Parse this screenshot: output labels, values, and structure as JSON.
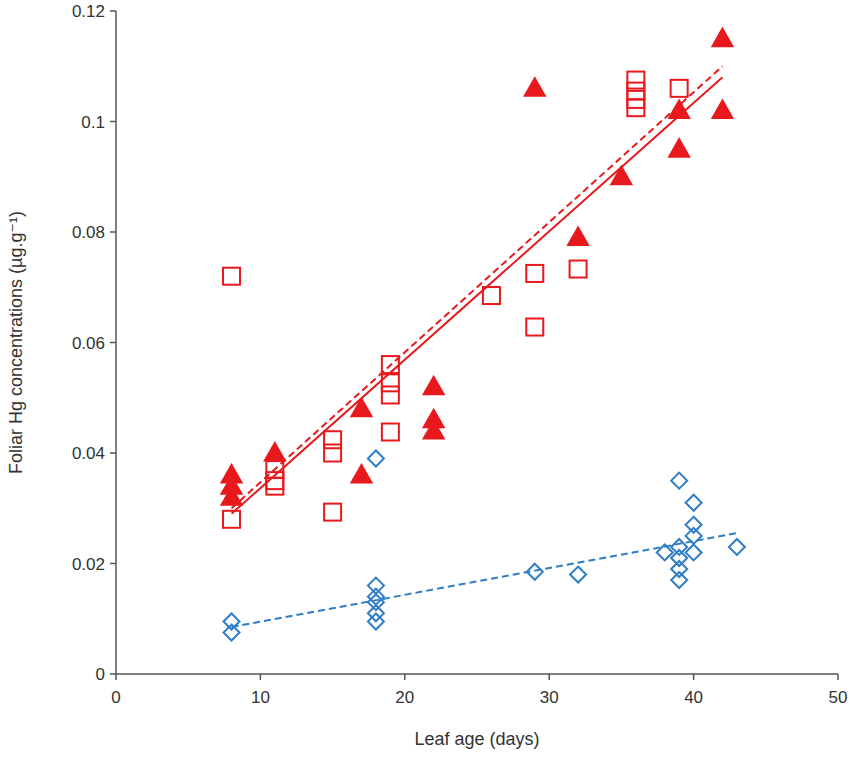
{
  "chart_data": {
    "type": "scatter",
    "x_label": "Leaf age (days)",
    "y_label": "Foliar Hg concentrations (µg.g⁻¹)",
    "xlim": [
      0,
      50
    ],
    "ylim": [
      0,
      0.12
    ],
    "xticks": [
      0,
      10,
      20,
      30,
      40,
      50
    ],
    "yticks": [
      0,
      0.02,
      0.04,
      0.06,
      0.08,
      0.1,
      0.12
    ],
    "grid": false,
    "series": [
      {
        "type": "scatter",
        "marker": "square-open",
        "color": "#e8191c",
        "x": [
          8,
          8,
          11,
          11,
          11,
          15,
          15,
          15,
          19,
          19,
          19,
          19,
          26,
          29,
          29,
          32,
          36,
          36,
          36,
          36,
          39
        ],
        "values": [
          0.072,
          0.028,
          0.037,
          0.035,
          0.034,
          0.0424,
          0.04,
          0.0293,
          0.056,
          0.0527,
          0.0505,
          0.0438,
          0.0685,
          0.0725,
          0.0628,
          0.0733,
          0.1075,
          0.1055,
          0.104,
          0.1025,
          0.106
        ]
      },
      {
        "type": "scatter",
        "marker": "triangle",
        "color": "#e8191c",
        "x": [
          8,
          8,
          8,
          11,
          17,
          17,
          22,
          22,
          22,
          29,
          32,
          35,
          39,
          39,
          42,
          42
        ],
        "values": [
          0.036,
          0.034,
          0.032,
          0.04,
          0.048,
          0.036,
          0.052,
          0.046,
          0.044,
          0.106,
          0.079,
          0.09,
          0.102,
          0.095,
          0.115,
          0.102
        ]
      },
      {
        "type": "scatter",
        "marker": "diamond-open",
        "color": "#2e7dc5",
        "x": [
          8,
          8,
          18,
          18,
          18,
          18,
          18,
          18,
          29,
          32,
          38,
          39,
          39,
          39,
          39,
          39,
          40,
          40,
          40,
          40,
          43
        ],
        "values": [
          0.0095,
          0.0075,
          0.039,
          0.016,
          0.014,
          0.013,
          0.011,
          0.0095,
          0.0185,
          0.018,
          0.022,
          0.035,
          0.023,
          0.021,
          0.019,
          0.017,
          0.031,
          0.027,
          0.025,
          0.022,
          0.023
        ]
      },
      {
        "type": "line",
        "line_style": "solid",
        "color": "#e8191c",
        "x": [
          8,
          42
        ],
        "values": [
          0.029,
          0.108
        ]
      },
      {
        "type": "line",
        "line_style": "dashed",
        "color": "#e8191c",
        "x": [
          8,
          42
        ],
        "values": [
          0.03,
          0.11
        ]
      },
      {
        "type": "line",
        "line_style": "dashed",
        "color": "#2e7dc5",
        "x": [
          8,
          43
        ],
        "values": [
          0.0085,
          0.0255
        ]
      }
    ]
  }
}
